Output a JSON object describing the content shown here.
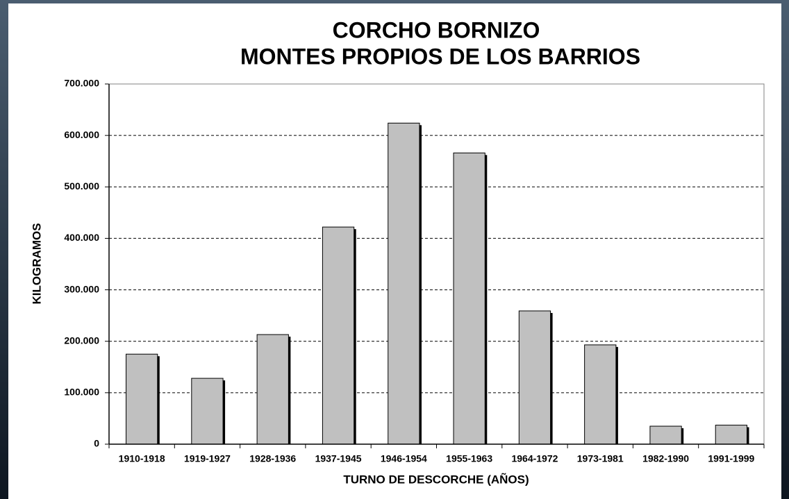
{
  "chart_data": {
    "type": "bar",
    "title": "CORCHO BORNIZO",
    "subtitle": "MONTES PROPIOS DE LOS BARRIOS",
    "x_label": "TURNO DE DESCORCHE (AÑOS)",
    "y_label": "KILOGRAMOS",
    "categories": [
      "1910-1918",
      "1919-1927",
      "1928-1936",
      "1937-1945",
      "1946-1954",
      "1955-1963",
      "1964-1972",
      "1973-1981",
      "1982-1990",
      "1991-1999"
    ],
    "values": [
      175000,
      128000,
      213000,
      422000,
      624000,
      566000,
      259000,
      193000,
      35000,
      37000
    ],
    "color": "#c0c0c0",
    "ylim": [
      0,
      700000
    ],
    "yticks": [
      0,
      {
        "value": 100000,
        "label": "100.000"
      },
      {
        "value": 200000,
        "label": "200.000"
      },
      {
        "value": 300000,
        "label": "300.000"
      },
      {
        "value": 400000,
        "label": "400.000"
      },
      {
        "value": 500000,
        "label": "500.000"
      },
      {
        "value": 600000,
        "label": "600.000"
      },
      {
        "value": 700000,
        "label": "700.000"
      }
    ],
    "grid": true
  }
}
